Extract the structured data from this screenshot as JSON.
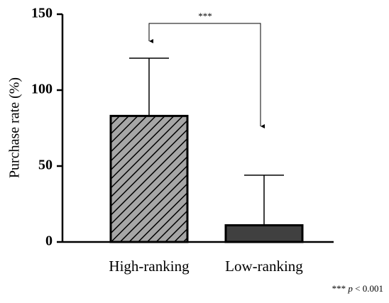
{
  "chart_data": {
    "type": "bar",
    "ylabel": "Purchase rate (%)",
    "categories": [
      "High-ranking",
      "Low-ranking"
    ],
    "values": [
      83,
      11
    ],
    "errors": [
      38,
      33
    ],
    "colors": [
      "#a6a6a6",
      "#404040"
    ],
    "hatch": [
      true,
      false
    ],
    "ylim": [
      0,
      150
    ],
    "yticks": [
      0,
      50,
      100,
      150
    ],
    "annotation": "***",
    "footnote": {
      "stars": "***",
      "p": "p",
      "text": "< 0.001"
    }
  }
}
